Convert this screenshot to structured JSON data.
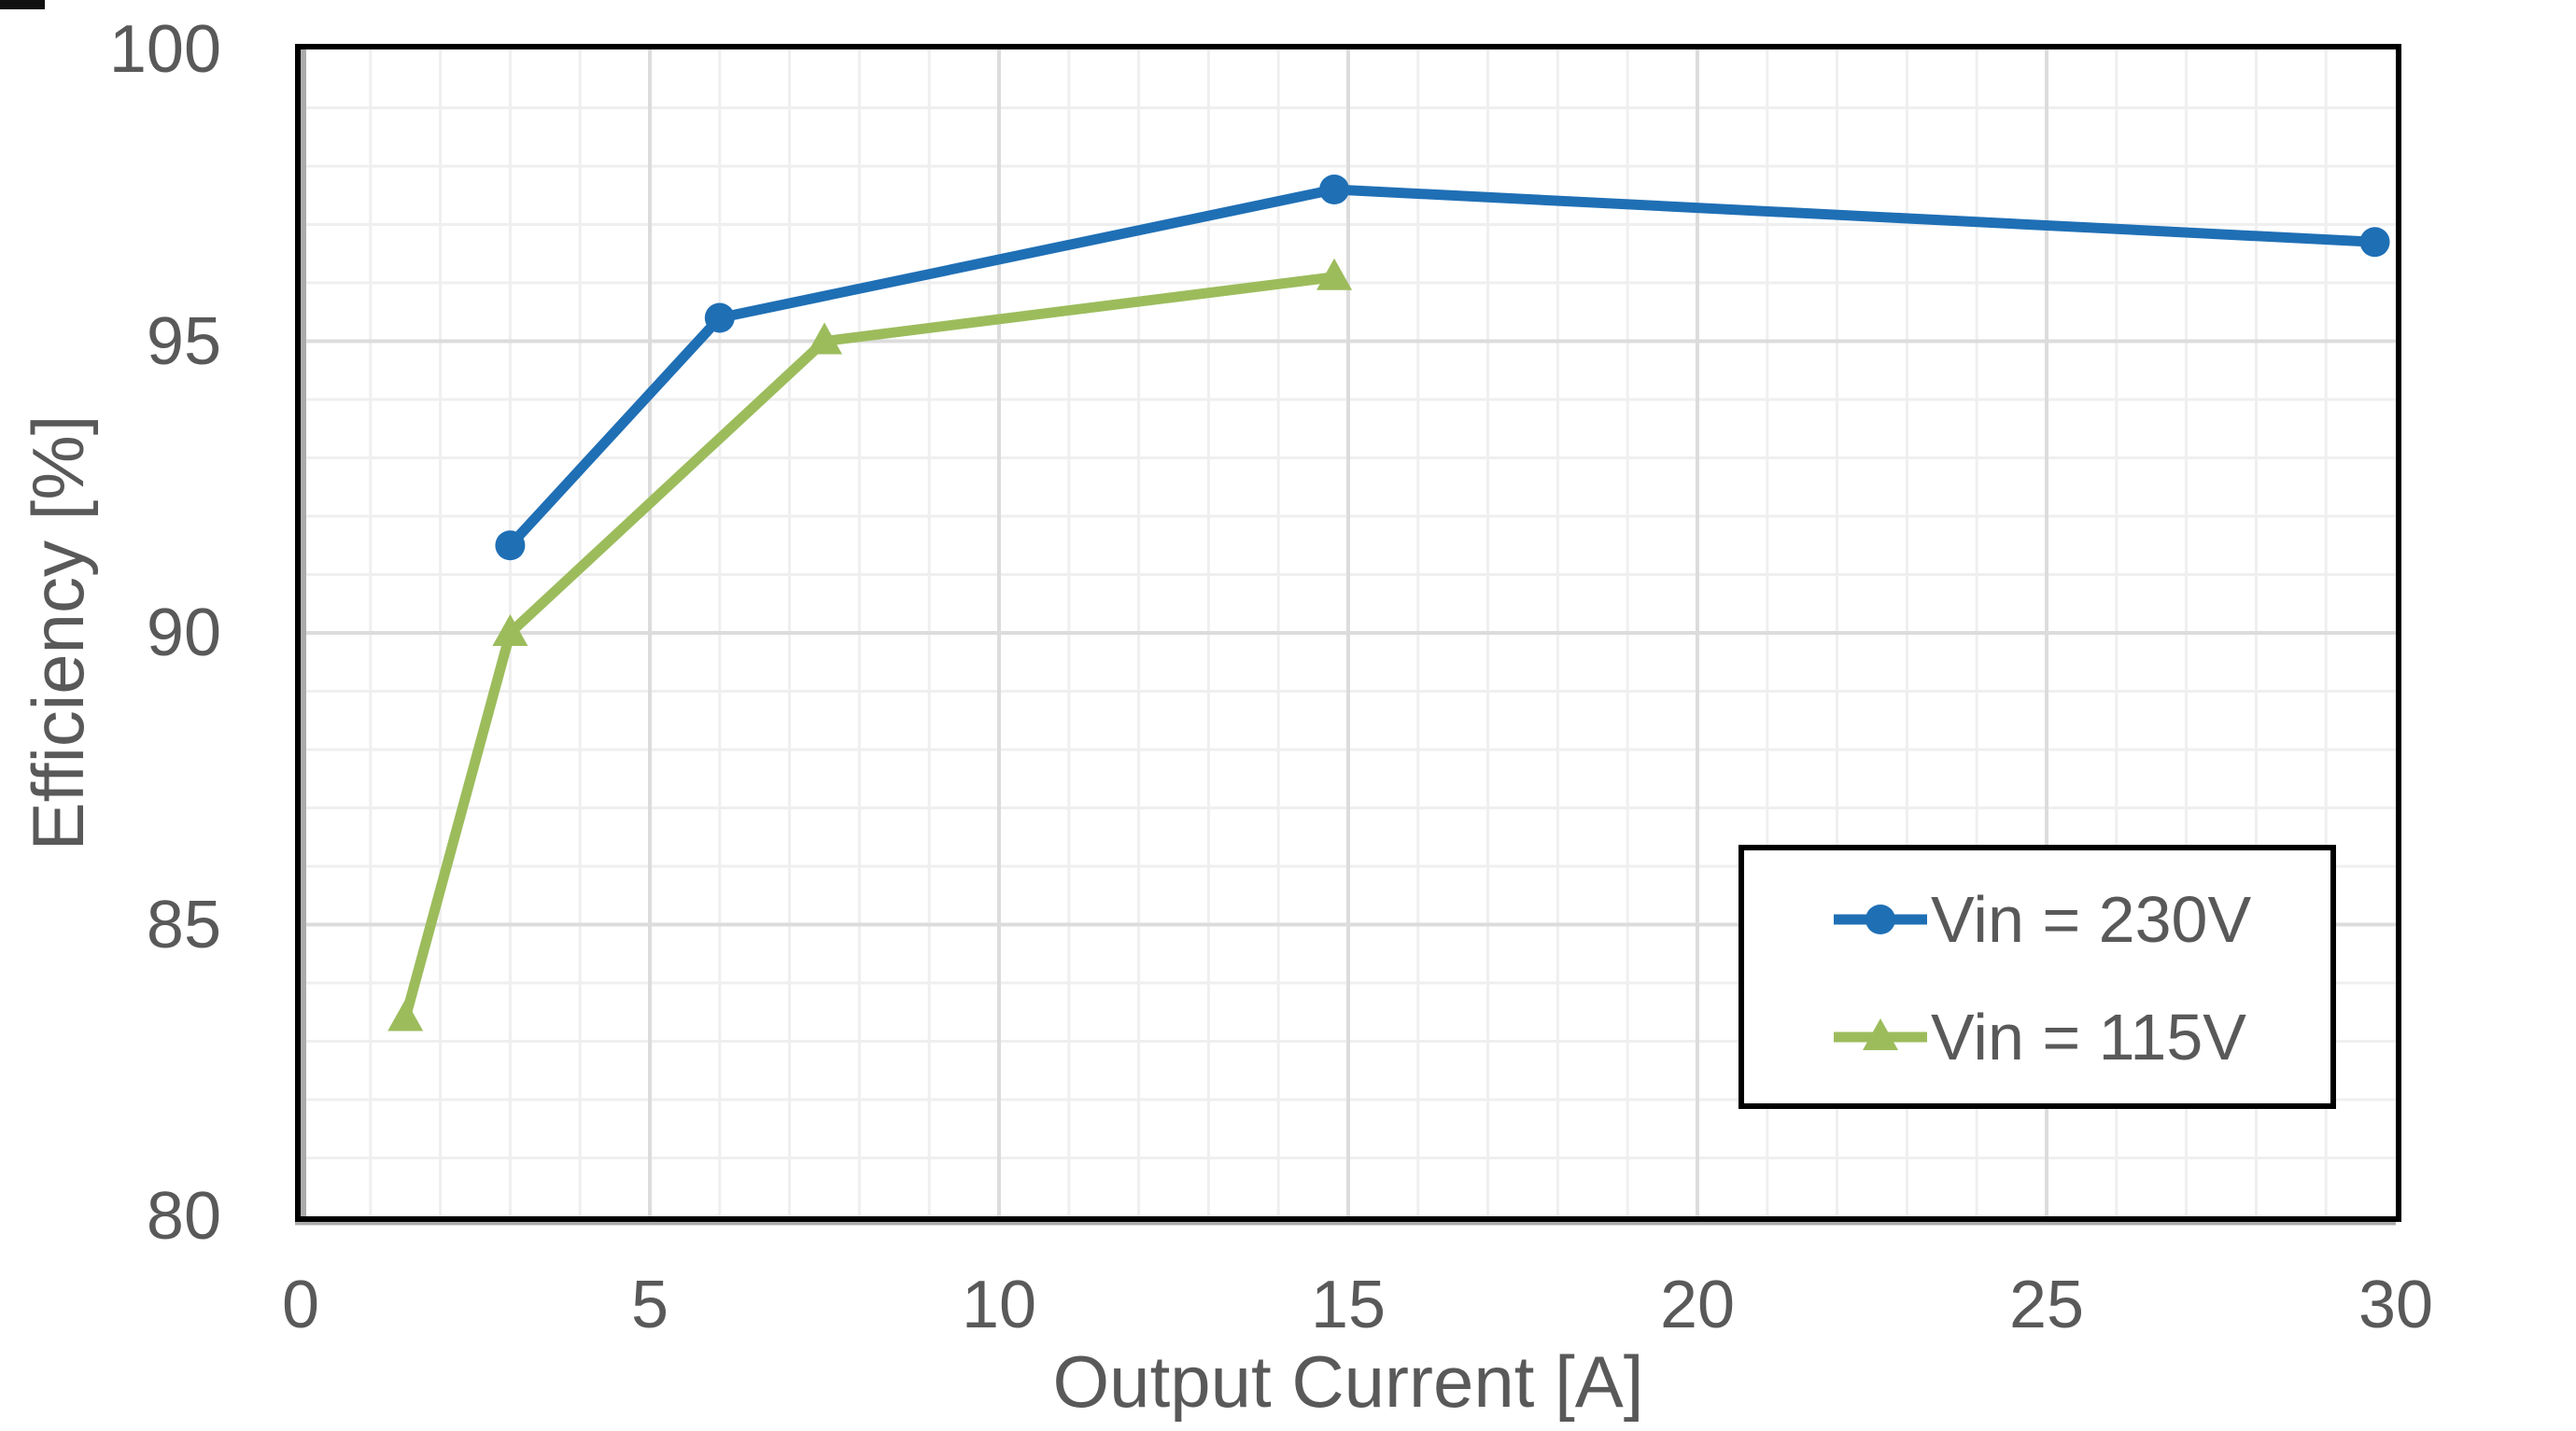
{
  "colors": {
    "background": "#FFFFFF",
    "text": "#595959",
    "grid_minor": "#EFEFEF",
    "grid_major": "#DCDCDC",
    "plot_border": "#000000",
    "axis_line": "#ABABAB",
    "legend_border": "#000000",
    "series_blue": "#1F6FB5",
    "series_green": "#9CBC5C"
  },
  "chart_data": {
    "type": "line",
    "title": "",
    "xlabel": "Output Current [A]",
    "ylabel": "Efficiency [%]",
    "xlim": [
      0,
      30
    ],
    "ylim": [
      80,
      100
    ],
    "xticks": [
      0,
      5,
      10,
      15,
      20,
      25,
      30
    ],
    "yticks": [
      80,
      85,
      90,
      95,
      100
    ],
    "x_minor_unit": 1,
    "y_minor_unit": 1,
    "x_major_unit": 5,
    "y_major_unit": 5,
    "grid": "major and minor gridlines shown",
    "legend_position": "inside lower right",
    "series": [
      {
        "name": "Vin = 230V",
        "color": "#1F6FB5",
        "marker": "circle",
        "points": [
          [
            3,
            91.5
          ],
          [
            6,
            95.4
          ],
          [
            14.8,
            97.6
          ],
          [
            29.7,
            96.7
          ]
        ]
      },
      {
        "name": "Vin = 115V",
        "color": "#9CBC5C",
        "marker": "triangle",
        "points": [
          [
            1.5,
            83.4
          ],
          [
            3,
            90.0
          ],
          [
            7.5,
            95.0
          ],
          [
            14.8,
            96.1
          ]
        ]
      }
    ]
  }
}
